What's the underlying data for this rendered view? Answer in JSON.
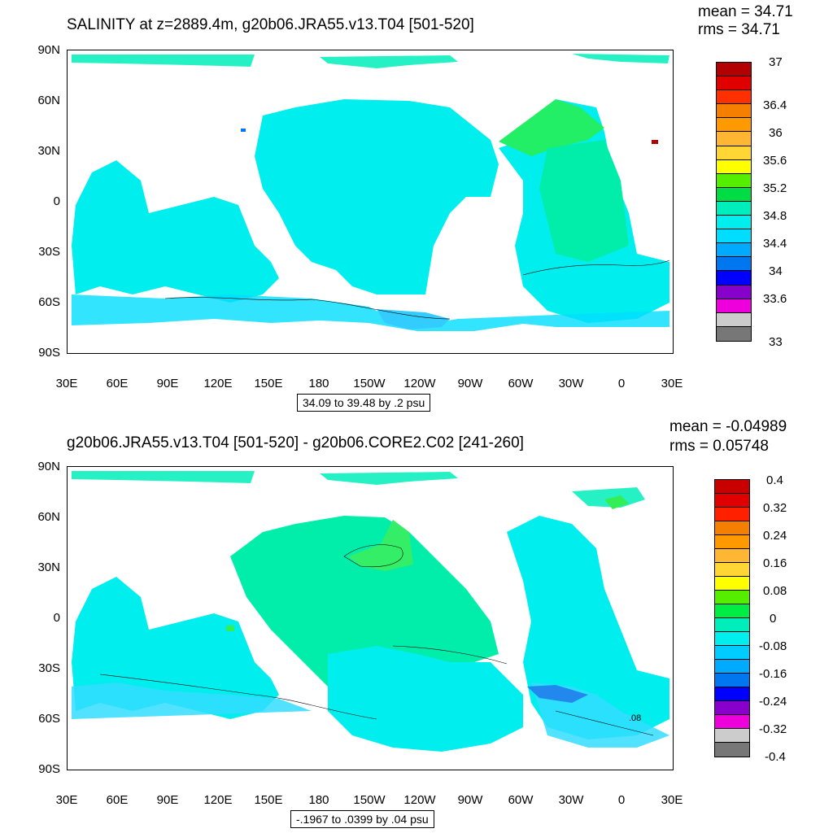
{
  "top_panel": {
    "title": "SALINITY at z=2889.4m, g20b06.JRA55.v13.T04 [501-520]",
    "mean_text": "mean = 34.71",
    "rms_text": "rms = 34.71",
    "range_text": "34.09 to 39.48 by .2 psu",
    "colorbar_labels": [
      "37",
      "36.4",
      "36",
      "35.6",
      "35.2",
      "34.8",
      "34.4",
      "34",
      "33.6",
      "33"
    ],
    "colorbar_colors": [
      "#b30000",
      "#e00000",
      "#ff3000",
      "#f57f00",
      "#ff9900",
      "#ffb733",
      "#ffd633",
      "#ffff00",
      "#55ee00",
      "#00dd44",
      "#00eebb",
      "#00eeee",
      "#00ddff",
      "#00aaff",
      "#0077ee",
      "#0000ff",
      "#8800cc",
      "#ee00dd",
      "#cccccc",
      "#777777"
    ]
  },
  "bottom_panel": {
    "title": "g20b06.JRA55.v13.T04 [501-520] - g20b06.CORE2.C02 [241-260]",
    "mean_text": "mean = -0.04989",
    "rms_text": "rms = 0.05748",
    "range_text": "-.1967 to .0399 by .04 psu",
    "colorbar_labels": [
      "0.4",
      "0.32",
      "0.24",
      "0.16",
      "0.08",
      "0",
      "-0.08",
      "-0.16",
      "-0.24",
      "-0.32",
      "-0.4"
    ],
    "colorbar_colors": [
      "#c80000",
      "#e00000",
      "#ff2000",
      "#f57f00",
      "#ff9900",
      "#ffb733",
      "#ffd633",
      "#ffff00",
      "#55ee00",
      "#00ee44",
      "#00eebb",
      "#00eeee",
      "#00ccff",
      "#00aaff",
      "#0077ee",
      "#0000ff",
      "#8800cc",
      "#ee00dd",
      "#cccccc",
      "#777777"
    ],
    "contour_label": ".08"
  },
  "axes": {
    "lat_labels": [
      "90N",
      "60N",
      "30N",
      "0",
      "30S",
      "60S",
      "90S"
    ],
    "lon_labels": [
      "30E",
      "60E",
      "90E",
      "120E",
      "150E",
      "180",
      "150W",
      "120W",
      "90W",
      "60W",
      "30W",
      "0",
      "30E"
    ]
  }
}
